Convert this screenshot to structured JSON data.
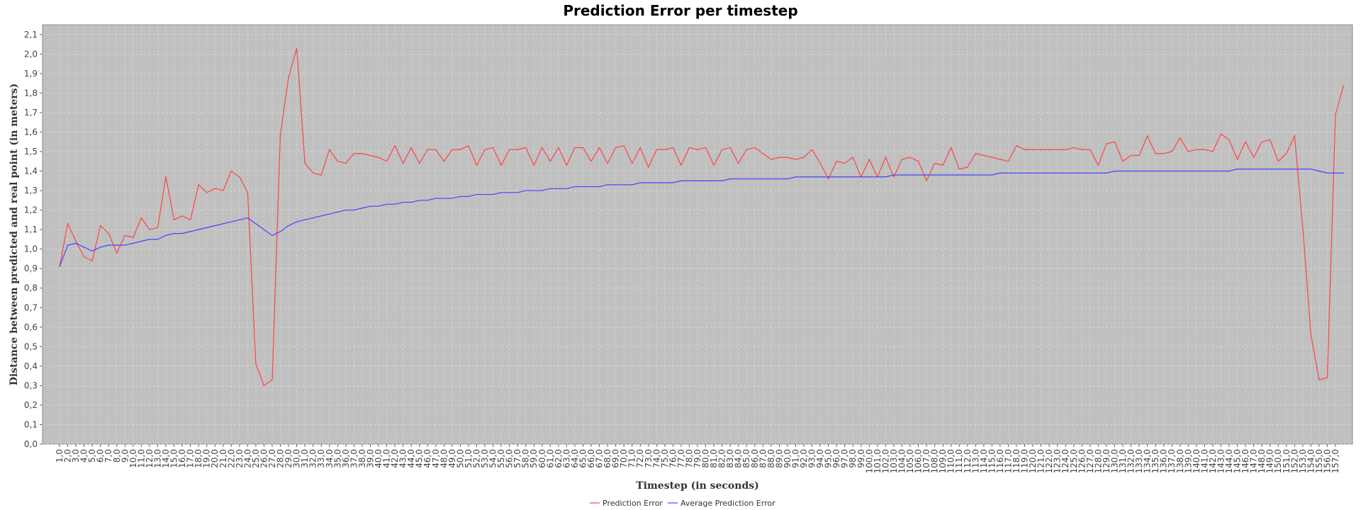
{
  "chart_data": {
    "type": "line",
    "title": "Prediction Error per timestep",
    "xlabel": "Timestep (in seconds)",
    "ylabel": "Distance between predicted and real point (in meters)",
    "ylim": [
      0,
      2.15
    ],
    "y_ticks": [
      "0,0",
      "0,1",
      "0,2",
      "0,3",
      "0,4",
      "0,5",
      "0,6",
      "0,7",
      "0,8",
      "0,9",
      "1,0",
      "1,1",
      "1,2",
      "1,3",
      "1,4",
      "1,5",
      "1,6",
      "1,7",
      "1,8",
      "1,9",
      "2,0",
      "2,1"
    ],
    "x_tick_format": "comma-one-decimal",
    "x_range": [
      1,
      157
    ],
    "grid": true,
    "legend_position": "bottom-center",
    "series": [
      {
        "name": "Prediction Error",
        "color": "#ff4444",
        "x_start": 1,
        "values": [
          0.91,
          1.13,
          1.04,
          0.96,
          0.94,
          1.12,
          1.08,
          0.98,
          1.07,
          1.06,
          1.16,
          1.1,
          1.11,
          1.37,
          1.15,
          1.17,
          1.15,
          1.33,
          1.29,
          1.31,
          1.3,
          1.4,
          1.37,
          1.29,
          0.41,
          0.3,
          0.33,
          1.59,
          1.88,
          2.03,
          1.44,
          1.39,
          1.38,
          1.51,
          1.45,
          1.44,
          1.49,
          1.49,
          1.48,
          1.47,
          1.45,
          1.53,
          1.44,
          1.52,
          1.44,
          1.51,
          1.51,
          1.45,
          1.51,
          1.51,
          1.53,
          1.43,
          1.51,
          1.52,
          1.43,
          1.51,
          1.51,
          1.52,
          1.43,
          1.52,
          1.45,
          1.52,
          1.43,
          1.52,
          1.52,
          1.45,
          1.52,
          1.44,
          1.52,
          1.53,
          1.44,
          1.52,
          1.42,
          1.51,
          1.51,
          1.52,
          1.43,
          1.52,
          1.51,
          1.52,
          1.43,
          1.51,
          1.52,
          1.44,
          1.51,
          1.52,
          1.49,
          1.46,
          1.47,
          1.47,
          1.46,
          1.47,
          1.51,
          1.44,
          1.36,
          1.45,
          1.44,
          1.47,
          1.37,
          1.46,
          1.37,
          1.47,
          1.37,
          1.46,
          1.47,
          1.45,
          1.35,
          1.44,
          1.43,
          1.52,
          1.41,
          1.42,
          1.49,
          1.48,
          1.47,
          1.46,
          1.45,
          1.53,
          1.51,
          1.51,
          1.51,
          1.51,
          1.51,
          1.51,
          1.52,
          1.51,
          1.51,
          1.43,
          1.54,
          1.55,
          1.45,
          1.48,
          1.48,
          1.58,
          1.49,
          1.49,
          1.5,
          1.57,
          1.5,
          1.51,
          1.51,
          1.5,
          1.59,
          1.56,
          1.46,
          1.55,
          1.47,
          1.55,
          1.56,
          1.45,
          1.49,
          1.58,
          1.11,
          0.56,
          0.33,
          0.34,
          1.69,
          1.84
        ]
      },
      {
        "name": "Average Prediction Error",
        "color": "#4444ff",
        "x_start": 1,
        "values": [
          0.91,
          1.02,
          1.03,
          1.01,
          0.99,
          1.01,
          1.02,
          1.02,
          1.02,
          1.03,
          1.04,
          1.05,
          1.05,
          1.07,
          1.08,
          1.08,
          1.09,
          1.1,
          1.11,
          1.12,
          1.13,
          1.14,
          1.15,
          1.16,
          1.13,
          1.1,
          1.07,
          1.09,
          1.12,
          1.14,
          1.15,
          1.16,
          1.17,
          1.18,
          1.19,
          1.2,
          1.2,
          1.21,
          1.22,
          1.22,
          1.23,
          1.23,
          1.24,
          1.24,
          1.25,
          1.25,
          1.26,
          1.26,
          1.26,
          1.27,
          1.27,
          1.28,
          1.28,
          1.28,
          1.29,
          1.29,
          1.29,
          1.3,
          1.3,
          1.3,
          1.31,
          1.31,
          1.31,
          1.32,
          1.32,
          1.32,
          1.32,
          1.33,
          1.33,
          1.33,
          1.33,
          1.34,
          1.34,
          1.34,
          1.34,
          1.34,
          1.35,
          1.35,
          1.35,
          1.35,
          1.35,
          1.35,
          1.36,
          1.36,
          1.36,
          1.36,
          1.36,
          1.36,
          1.36,
          1.36,
          1.37,
          1.37,
          1.37,
          1.37,
          1.37,
          1.37,
          1.37,
          1.37,
          1.37,
          1.37,
          1.37,
          1.37,
          1.38,
          1.38,
          1.38,
          1.38,
          1.38,
          1.38,
          1.38,
          1.38,
          1.38,
          1.38,
          1.38,
          1.38,
          1.38,
          1.39,
          1.39,
          1.39,
          1.39,
          1.39,
          1.39,
          1.39,
          1.39,
          1.39,
          1.39,
          1.39,
          1.39,
          1.39,
          1.39,
          1.4,
          1.4,
          1.4,
          1.4,
          1.4,
          1.4,
          1.4,
          1.4,
          1.4,
          1.4,
          1.4,
          1.4,
          1.4,
          1.4,
          1.4,
          1.41,
          1.41,
          1.41,
          1.41,
          1.41,
          1.41,
          1.41,
          1.41,
          1.41,
          1.41,
          1.4,
          1.39,
          1.39,
          1.39
        ]
      }
    ]
  }
}
